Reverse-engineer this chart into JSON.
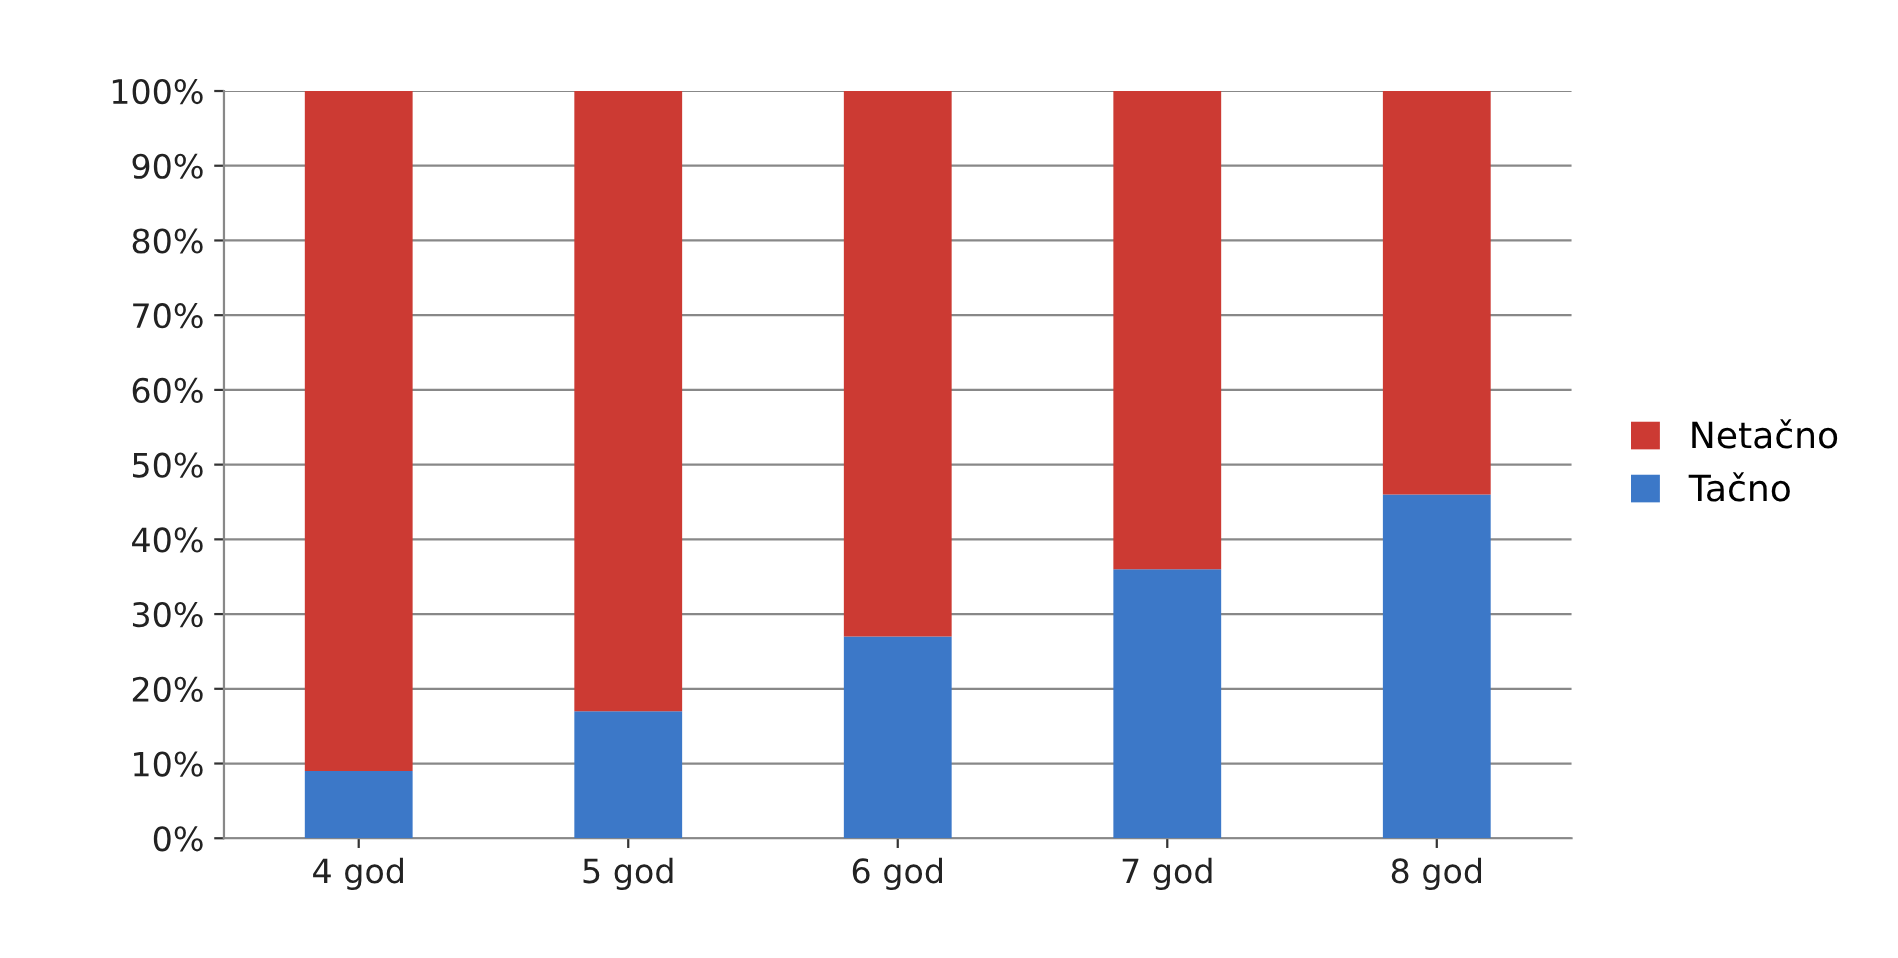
{
  "chart_data": {
    "type": "bar",
    "stacked": true,
    "categories": [
      "4 god",
      "5 god",
      "6 god",
      "7 god",
      "8 god"
    ],
    "series": [
      {
        "name": "Tačno",
        "color": "#3c78c8",
        "values": [
          9,
          17,
          27,
          36,
          46
        ]
      },
      {
        "name": "Netačno",
        "color": "#cc3a33",
        "values": [
          91,
          83,
          73,
          64,
          54
        ]
      }
    ],
    "ylim": [
      0,
      100
    ],
    "yticks": [
      {
        "value": 0,
        "label": "0%"
      },
      {
        "value": 10,
        "label": "10%"
      },
      {
        "value": 20,
        "label": "20%"
      },
      {
        "value": 30,
        "label": "30%"
      },
      {
        "value": 40,
        "label": "40%"
      },
      {
        "value": 50,
        "label": "50%"
      },
      {
        "value": 60,
        "label": "60%"
      },
      {
        "value": 70,
        "label": "70%"
      },
      {
        "value": 80,
        "label": "80%"
      },
      {
        "value": 90,
        "label": "90%"
      },
      {
        "value": 100,
        "label": "100%"
      }
    ],
    "grid": "y",
    "legend": "right"
  }
}
